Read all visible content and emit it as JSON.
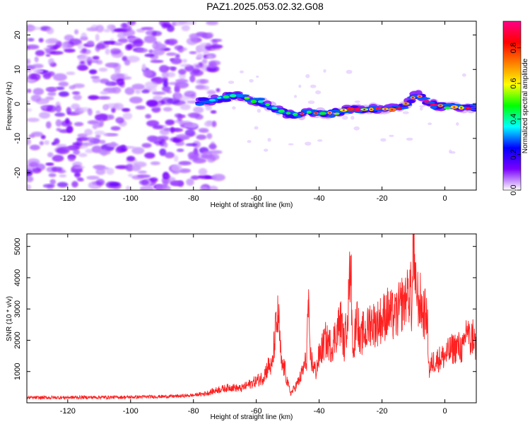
{
  "title": "PAZ1.2025.053.02.32.G08",
  "chart_data": [
    {
      "type": "heatmap",
      "xlabel": "Height of straight line (km)",
      "ylabel": "Frequency (Hz)",
      "xlim": [
        -133,
        10
      ],
      "ylim": [
        -25,
        24
      ],
      "xticks": [
        -120,
        -100,
        -80,
        -60,
        -40,
        -20,
        0
      ],
      "yticks": [
        -20,
        -10,
        0,
        10,
        20
      ],
      "signal_track": {
        "x": [
          -78,
          -72,
          -66,
          -62,
          -58,
          -54,
          -50,
          -46,
          -42,
          -38,
          -34,
          -30,
          -26,
          -22,
          -18,
          -14,
          -11,
          -9,
          -7,
          -5,
          -2,
          2,
          6,
          10
        ],
        "y": [
          0.5,
          1.5,
          2.5,
          1.2,
          0.5,
          -1.5,
          -3.0,
          -3.0,
          -2.5,
          -3.0,
          -2.5,
          -1.5,
          -1.5,
          -1.5,
          -1.5,
          -1.0,
          1.0,
          3.0,
          2.0,
          0.0,
          -0.5,
          -1.0,
          -1.0,
          -1.0
        ]
      },
      "colorbar": {
        "label": "Normalized spectral amplitude",
        "range": [
          0.0,
          0.95
        ],
        "ticks": [
          "0.0",
          "0.2",
          "0.4",
          "0.6",
          "0.8"
        ],
        "colors": [
          "#ffffff",
          "#7a00ff",
          "#0000ff",
          "#00ffff",
          "#00ff00",
          "#ffff00",
          "#ff8000",
          "#ff0000",
          "#ff0088"
        ]
      }
    },
    {
      "type": "line",
      "xlabel": "Height of straight line (km)",
      "ylabel": "SNR (10 * v/v)",
      "xlim": [
        -133,
        10
      ],
      "ylim": [
        0,
        5400
      ],
      "xticks": [
        -120,
        -100,
        -80,
        -60,
        -40,
        -20,
        0
      ],
      "yticks": [
        1000,
        2000,
        3000,
        4000,
        5000
      ],
      "color": "#ff2020",
      "series": [
        {
          "x": [
            -133,
            -120,
            -100,
            -85,
            -80,
            -76,
            -72,
            -68,
            -65,
            -62,
            -60,
            -58,
            -56,
            -55,
            -54,
            -53,
            -52,
            -51,
            -50,
            -49,
            -48,
            -47,
            -46,
            -45,
            -44,
            -43.5,
            -43,
            -42,
            -41,
            -40,
            -38,
            -36,
            -34,
            -33,
            -32,
            -31,
            -30.5,
            -30,
            -29.5,
            -29,
            -28,
            -27,
            -26,
            -25,
            -24,
            -22,
            -20,
            -18,
            -16,
            -14,
            -13,
            -12,
            -11,
            -10.5,
            -10,
            -9.5,
            -9,
            -8,
            -7,
            -6,
            -5.5,
            -5,
            -4,
            -2,
            0,
            2,
            4,
            6,
            7,
            8,
            9,
            10
          ],
          "y": [
            150,
            160,
            170,
            200,
            230,
            300,
            420,
            500,
            450,
            600,
            700,
            800,
            1200,
            1100,
            2200,
            2800,
            1200,
            1100,
            600,
            300,
            450,
            600,
            800,
            1100,
            1400,
            3300,
            1600,
            1200,
            1000,
            1500,
            2000,
            1800,
            2400,
            2600,
            1800,
            2800,
            3300,
            4700,
            2600,
            1500,
            3200,
            1800,
            2300,
            2200,
            2600,
            2500,
            2700,
            2900,
            2700,
            3100,
            3400,
            3300,
            3700,
            2900,
            5400,
            3600,
            3400,
            3300,
            2900,
            2800,
            2400,
            1000,
            1300,
            1400,
            1500,
            1700,
            1800,
            1700,
            2500,
            1900,
            2200,
            1700
          ]
        }
      ]
    }
  ]
}
